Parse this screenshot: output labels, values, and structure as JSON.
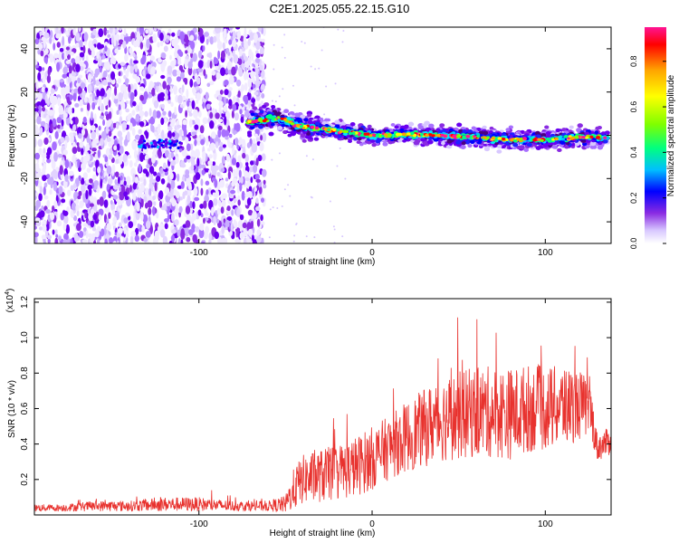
{
  "figure": {
    "title": "C2E1.2025.055.22.15.G10"
  },
  "chart_data": [
    {
      "type": "heatmap",
      "title": "C2E1.2025.055.22.15.G10",
      "xlabel": "Height of straight line (km)",
      "ylabel": "Frequency (Hz)",
      "xlim": [
        -195,
        138
      ],
      "ylim": [
        -50,
        50
      ],
      "xticks": [
        -100,
        0,
        100
      ],
      "xtick_labels": [
        "-100",
        "0",
        "100"
      ],
      "yticks": [
        -40,
        -20,
        0,
        20,
        40
      ],
      "ytick_labels": [
        "-40",
        "-20",
        "0",
        "20",
        "40"
      ],
      "grid": false,
      "colorbar": {
        "label": "Normalized spectral amplitude",
        "range": [
          0,
          0.95
        ],
        "ticks": [
          0.0,
          0.2,
          0.4,
          0.6,
          0.8
        ],
        "tick_labels": [
          "0.0",
          "0.2",
          "0.4",
          "0.6",
          "0.8"
        ],
        "colormap": [
          "#ffffff",
          "#d8c8ff",
          "#8a2be2",
          "#0000ff",
          "#00bfff",
          "#00ff80",
          "#7fff00",
          "#ffff00",
          "#ffa500",
          "#ff0000",
          "#ff1493"
        ]
      },
      "ridge_frequency": {
        "x": [
          -72,
          -62,
          -55,
          -50,
          -45,
          -40,
          -30,
          -20,
          -10,
          0,
          10,
          20,
          40,
          60,
          80,
          100,
          120,
          136
        ],
        "y": [
          6,
          7,
          8,
          7,
          5,
          4,
          3,
          2,
          1,
          0,
          0,
          0.5,
          0,
          -1,
          -2,
          -2,
          -1,
          -1
        ]
      },
      "noise_region_x": [
        -195,
        -62
      ],
      "colors": {
        "ridge_peak": "#ff0000",
        "noise": "#8a2be2"
      }
    },
    {
      "type": "line",
      "xlabel": "Height of straight line (km)",
      "ylabel": "SNR (10 * v/v)",
      "yscale_label": "(x10",
      "yscale_exponent": "4",
      "yscale_suffix": ")",
      "xlim": [
        -195,
        138
      ],
      "ylim": [
        0,
        1.22
      ],
      "xticks": [
        -100,
        0,
        100
      ],
      "xtick_labels": [
        "-100",
        "0",
        "100"
      ],
      "yticks": [
        0.2,
        0.4,
        0.6,
        0.8,
        1.0,
        1.2
      ],
      "ytick_labels": [
        "0.2",
        "0.4",
        "0.6",
        "0.8",
        "1.0",
        "1.2"
      ],
      "grid": false,
      "series": [
        {
          "color": "#e8322e",
          "x": [
            -195,
            -180,
            -160,
            -140,
            -120,
            -100,
            -80,
            -60,
            -50,
            -45,
            -40,
            -30,
            -20,
            -10,
            0,
            10,
            20,
            30,
            40,
            50,
            60,
            70,
            80,
            90,
            100,
            110,
            120,
            126,
            130,
            138
          ],
          "y": [
            0.04,
            0.04,
            0.05,
            0.05,
            0.06,
            0.06,
            0.05,
            0.05,
            0.06,
            0.15,
            0.2,
            0.22,
            0.24,
            0.27,
            0.32,
            0.38,
            0.44,
            0.49,
            0.54,
            0.56,
            0.58,
            0.58,
            0.57,
            0.6,
            0.6,
            0.61,
            0.62,
            0.6,
            0.38,
            0.42
          ],
          "spread": [
            0.02,
            0.02,
            0.03,
            0.03,
            0.04,
            0.04,
            0.03,
            0.03,
            0.05,
            0.12,
            0.14,
            0.15,
            0.16,
            0.17,
            0.18,
            0.18,
            0.2,
            0.22,
            0.24,
            0.25,
            0.26,
            0.26,
            0.26,
            0.25,
            0.24,
            0.23,
            0.2,
            0.15,
            0.08,
            0.08
          ]
        }
      ]
    }
  ]
}
